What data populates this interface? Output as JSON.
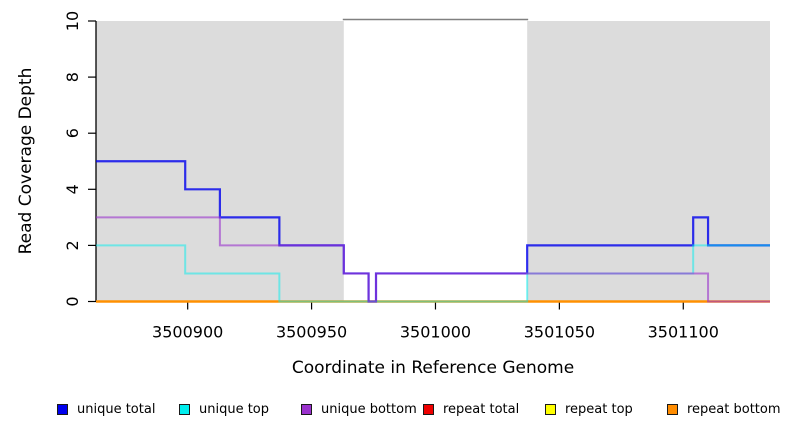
{
  "figure": {
    "background": "#ffffff"
  },
  "chart_data": {
    "type": "line",
    "subtype": "step",
    "title": "",
    "xlabel": "Coordinate in Reference Genome",
    "ylabel": "Read Coverage Depth",
    "xlim": [
      3500863,
      3501135
    ],
    "ylim": [
      0,
      10
    ],
    "xticks": [
      3500900,
      3500950,
      3501000,
      3501050,
      3501100
    ],
    "yticks": [
      0,
      2,
      4,
      6,
      8,
      10
    ],
    "grid": false,
    "legend_position": "bottom",
    "shade_color": "#dcdcdc",
    "shaded_regions": [
      {
        "from": 3500863,
        "to": 3500963
      },
      {
        "from": 3501037,
        "to": 3501135
      }
    ],
    "gap_border_color": "#808080",
    "series": [
      {
        "name": "unique total",
        "color": "#0000ee",
        "opacity": 0.8,
        "width": 2.2,
        "steps": [
          [
            3500863,
            5
          ],
          [
            3500899,
            4
          ],
          [
            3500913,
            3
          ],
          [
            3500937,
            2
          ],
          [
            3500963,
            1
          ],
          [
            3500973,
            0
          ],
          [
            3500976,
            1
          ],
          [
            3501037,
            2
          ],
          [
            3501104,
            3
          ],
          [
            3501110,
            2
          ],
          [
            3501135,
            2
          ]
        ]
      },
      {
        "name": "unique top",
        "color": "#00eeee",
        "opacity": 0.5,
        "width": 2,
        "steps": [
          [
            3500863,
            2
          ],
          [
            3500899,
            1
          ],
          [
            3500937,
            0
          ],
          [
            3501037,
            1
          ],
          [
            3501104,
            2
          ],
          [
            3501135,
            2
          ]
        ]
      },
      {
        "name": "unique bottom",
        "color": "#9a32cd",
        "opacity": 0.6,
        "width": 2,
        "steps": [
          [
            3500863,
            3
          ],
          [
            3500913,
            2
          ],
          [
            3500963,
            1
          ],
          [
            3500973,
            0
          ],
          [
            3500976,
            1
          ],
          [
            3501110,
            0
          ],
          [
            3501135,
            0
          ]
        ]
      },
      {
        "name": "repeat total",
        "color": "#ee0000",
        "opacity": 0.9,
        "width": 2,
        "steps": [
          [
            3500863,
            0
          ],
          [
            3501135,
            0
          ]
        ]
      },
      {
        "name": "repeat top",
        "color": "#ffff00",
        "opacity": 0.85,
        "width": 2,
        "steps": [
          [
            3500863,
            0
          ],
          [
            3501135,
            0
          ]
        ]
      },
      {
        "name": "repeat bottom",
        "color": "#ff8c00",
        "opacity": 0.95,
        "width": 2.4,
        "steps": [
          [
            3500863,
            0
          ],
          [
            3501135,
            0
          ]
        ]
      }
    ],
    "draw_order": [
      "repeat total",
      "repeat top",
      "repeat bottom",
      "unique total",
      "unique top",
      "unique bottom"
    ]
  }
}
